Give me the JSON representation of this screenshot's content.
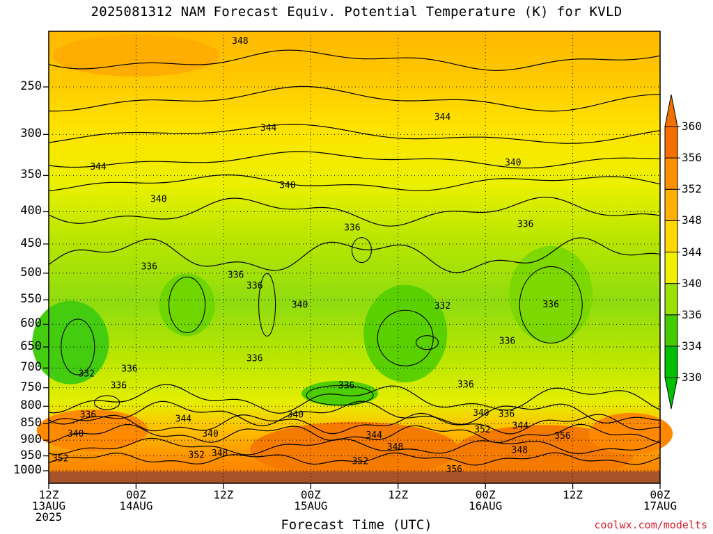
{
  "title": "2025081312 NAM Forecast Equiv. Potential Temperature (K) for KVLD",
  "credit": "coolwx.com/modelts",
  "chart_data": {
    "type": "heatmap",
    "title": "2025081312 NAM Forecast Equiv. Potential Temperature (K) for KVLD",
    "xlabel": "Forecast Time (UTC)",
    "ylabel": "",
    "x_ticks": [
      {
        "lines": [
          "12Z",
          "13AUG",
          "2025"
        ],
        "hours": 0
      },
      {
        "lines": [
          "00Z",
          "14AUG"
        ],
        "hours": 12
      },
      {
        "lines": [
          "12Z"
        ],
        "hours": 24
      },
      {
        "lines": [
          "00Z",
          "15AUG"
        ],
        "hours": 36
      },
      {
        "lines": [
          "12Z"
        ],
        "hours": 48
      },
      {
        "lines": [
          "00Z",
          "16AUG"
        ],
        "hours": 60
      },
      {
        "lines": [
          "12Z"
        ],
        "hours": 72
      },
      {
        "lines": [
          "00Z",
          "17AUG"
        ],
        "hours": 84
      }
    ],
    "y_ticks": [
      "250",
      "300",
      "350",
      "400",
      "450",
      "500",
      "550",
      "600",
      "650",
      "700",
      "750",
      "800",
      "850",
      "900",
      "950",
      "1000"
    ],
    "colorbar": {
      "levels": [
        "330",
        "334",
        "336",
        "340",
        "344",
        "348",
        "352",
        "356",
        "360"
      ],
      "colors": [
        "#00c000",
        "#44cc00",
        "#9ae000",
        "#eef000",
        "#ffd800",
        "#ffb000",
        "#ff9000",
        "#f56e00"
      ]
    },
    "contour_labels": [
      {
        "text": "348",
        "hours": 26.3,
        "pressure": 208
      },
      {
        "text": "344",
        "hours": 54.1,
        "pressure": 280
      },
      {
        "text": "344",
        "hours": 30.2,
        "pressure": 292
      },
      {
        "text": "344",
        "hours": 6.8,
        "pressure": 338
      },
      {
        "text": "340",
        "hours": 63.8,
        "pressure": 333
      },
      {
        "text": "340",
        "hours": 32.8,
        "pressure": 362
      },
      {
        "text": "340",
        "hours": 15.1,
        "pressure": 381
      },
      {
        "text": "336",
        "hours": 41.7,
        "pressure": 423
      },
      {
        "text": "336",
        "hours": 65.5,
        "pressure": 418
      },
      {
        "text": "336",
        "hours": 13.8,
        "pressure": 487
      },
      {
        "text": "336",
        "hours": 25.7,
        "pressure": 502
      },
      {
        "text": "336",
        "hours": 28.3,
        "pressure": 522
      },
      {
        "text": "340",
        "hours": 34.5,
        "pressure": 559
      },
      {
        "text": "332",
        "hours": 54.1,
        "pressure": 561
      },
      {
        "text": "336",
        "hours": 69.0,
        "pressure": 558
      },
      {
        "text": "336",
        "hours": 63.0,
        "pressure": 635
      },
      {
        "text": "336",
        "hours": 28.3,
        "pressure": 675
      },
      {
        "text": "336",
        "hours": 11.1,
        "pressure": 700
      },
      {
        "text": "332",
        "hours": 5.2,
        "pressure": 712
      },
      {
        "text": "336",
        "hours": 9.6,
        "pressure": 742
      },
      {
        "text": "336",
        "hours": 40.9,
        "pressure": 742
      },
      {
        "text": "336",
        "hours": 57.3,
        "pressure": 740
      },
      {
        "text": "340",
        "hours": 33.9,
        "pressure": 822
      },
      {
        "text": "340",
        "hours": 59.4,
        "pressure": 817
      },
      {
        "text": "336",
        "hours": 62.9,
        "pressure": 820
      },
      {
        "text": "336",
        "hours": 5.4,
        "pressure": 822
      },
      {
        "text": "344",
        "hours": 18.5,
        "pressure": 834
      },
      {
        "text": "344",
        "hours": 64.8,
        "pressure": 854
      },
      {
        "text": "352",
        "hours": 59.6,
        "pressure": 866
      },
      {
        "text": "340",
        "hours": 3.7,
        "pressure": 878
      },
      {
        "text": "340",
        "hours": 22.2,
        "pressure": 878
      },
      {
        "text": "344",
        "hours": 44.7,
        "pressure": 883
      },
      {
        "text": "356",
        "hours": 70.6,
        "pressure": 885
      },
      {
        "text": "348",
        "hours": 47.6,
        "pressure": 919
      },
      {
        "text": "348",
        "hours": 64.7,
        "pressure": 929
      },
      {
        "text": "352",
        "hours": 20.3,
        "pressure": 945
      },
      {
        "text": "348",
        "hours": 23.5,
        "pressure": 940
      },
      {
        "text": "352",
        "hours": 1.6,
        "pressure": 957
      },
      {
        "text": "352",
        "hours": 42.8,
        "pressure": 966
      },
      {
        "text": "356",
        "hours": 55.7,
        "pressure": 993
      }
    ]
  }
}
